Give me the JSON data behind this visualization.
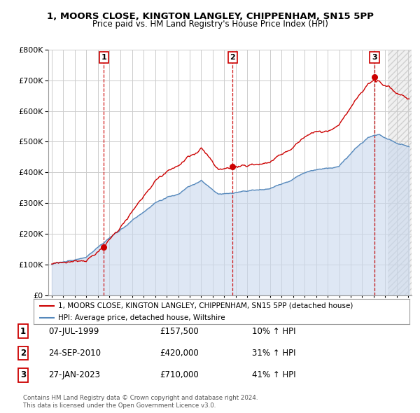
{
  "title": "1, MOORS CLOSE, KINGTON LANGLEY, CHIPPENHAM, SN15 5PP",
  "subtitle": "Price paid vs. HM Land Registry's House Price Index (HPI)",
  "legend_label_red": "1, MOORS CLOSE, KINGTON LANGLEY, CHIPPENHAM, SN15 5PP (detached house)",
  "legend_label_blue": "HPI: Average price, detached house, Wiltshire",
  "footer1": "Contains HM Land Registry data © Crown copyright and database right 2024.",
  "footer2": "This data is licensed under the Open Government Licence v3.0.",
  "transactions": [
    {
      "num": 1,
      "date": "07-JUL-1999",
      "price": "£157,500",
      "change": "10% ↑ HPI",
      "year": 1999.52
    },
    {
      "num": 2,
      "date": "24-SEP-2010",
      "price": "£420,000",
      "change": "31% ↑ HPI",
      "year": 2010.73
    },
    {
      "num": 3,
      "date": "27-JAN-2023",
      "price": "£710,000",
      "change": "41% ↑ HPI",
      "year": 2023.07
    }
  ],
  "transaction_prices": [
    157500,
    420000,
    710000
  ],
  "color_red": "#cc0000",
  "color_blue": "#5588bb",
  "color_blue_fill": "#c8d8ee",
  "color_grid": "#cccccc",
  "color_bg": "#ffffff",
  "color_hatch": "#e8e8e8",
  "ylim": [
    0,
    800000
  ],
  "xlim_start": 1994.7,
  "xlim_end": 2026.3,
  "yticks": [
    0,
    100000,
    200000,
    300000,
    400000,
    500000,
    600000,
    700000,
    800000
  ],
  "xticks": [
    1995,
    1996,
    1997,
    1998,
    1999,
    2000,
    2001,
    2002,
    2003,
    2004,
    2005,
    2006,
    2007,
    2008,
    2009,
    2010,
    2011,
    2012,
    2013,
    2014,
    2015,
    2016,
    2017,
    2018,
    2019,
    2020,
    2021,
    2022,
    2023,
    2024,
    2025,
    2026
  ],
  "hatch_start": 2024.25
}
